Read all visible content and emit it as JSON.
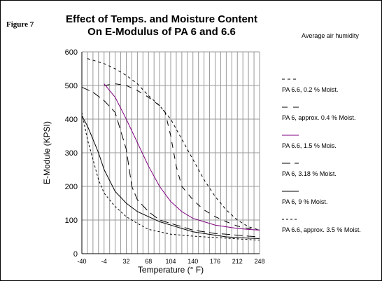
{
  "figure_label": "Figure 7",
  "chart_data": {
    "type": "line",
    "title_lines": [
      "Effect of Temps. and Moisture Content",
      "On E-Modulus of PA 6 and 6.6"
    ],
    "legend_title": "Average air humidity",
    "xlabel": "Temperature (° F)",
    "ylabel": "E-Module (KPSI)",
    "xlim": [
      -40,
      248
    ],
    "ylim": [
      0,
      600
    ],
    "x_ticks": [
      -40,
      -4,
      32,
      68,
      104,
      140,
      176,
      212,
      248
    ],
    "y_ticks": [
      0,
      100,
      200,
      300,
      400,
      500,
      600
    ],
    "grid": true,
    "legend_position": "right",
    "series": [
      {
        "name": "PA 6.6, 0.2 % Moist.",
        "color": "#000000",
        "dash": "4,4",
        "points": [
          [
            -31,
            580
          ],
          [
            -4,
            565
          ],
          [
            14,
            550
          ],
          [
            32,
            530
          ],
          [
            50,
            505
          ],
          [
            68,
            470
          ],
          [
            86,
            440
          ],
          [
            104,
            400
          ],
          [
            122,
            340
          ],
          [
            140,
            280
          ],
          [
            158,
            220
          ],
          [
            176,
            170
          ],
          [
            194,
            130
          ],
          [
            212,
            100
          ],
          [
            230,
            80
          ],
          [
            248,
            70
          ]
        ]
      },
      {
        "name": "PA 6, approx. 0.4 % Moist.",
        "color": "#000000",
        "dash": "8,8",
        "points": [
          [
            -4,
            500
          ],
          [
            14,
            505
          ],
          [
            32,
            500
          ],
          [
            50,
            485
          ],
          [
            68,
            465
          ],
          [
            86,
            440
          ],
          [
            95,
            420
          ],
          [
            104,
            350
          ],
          [
            113,
            260
          ],
          [
            122,
            200
          ],
          [
            140,
            160
          ],
          [
            158,
            130
          ],
          [
            176,
            110
          ],
          [
            194,
            95
          ],
          [
            212,
            82
          ],
          [
            230,
            75
          ],
          [
            248,
            70
          ]
        ]
      },
      {
        "name": "PA 6.6, 1.5 % Mois.",
        "color": "#800080",
        "dash": "",
        "points": [
          [
            -4,
            505
          ],
          [
            14,
            465
          ],
          [
            32,
            400
          ],
          [
            50,
            330
          ],
          [
            68,
            260
          ],
          [
            86,
            200
          ],
          [
            104,
            155
          ],
          [
            122,
            125
          ],
          [
            140,
            105
          ],
          [
            158,
            95
          ],
          [
            176,
            85
          ],
          [
            194,
            80
          ],
          [
            212,
            75
          ],
          [
            230,
            72
          ],
          [
            248,
            70
          ]
        ]
      },
      {
        "name": "PA 6, 3.18 % Moist.",
        "color": "#000000",
        "dash": "12,6",
        "points": [
          [
            -40,
            495
          ],
          [
            -22,
            480
          ],
          [
            -4,
            455
          ],
          [
            14,
            420
          ],
          [
            32,
            310
          ],
          [
            41,
            200
          ],
          [
            50,
            160
          ],
          [
            68,
            125
          ],
          [
            86,
            100
          ],
          [
            104,
            90
          ],
          [
            122,
            80
          ],
          [
            140,
            70
          ],
          [
            158,
            65
          ],
          [
            176,
            60
          ],
          [
            194,
            58
          ],
          [
            212,
            55
          ],
          [
            230,
            52
          ],
          [
            248,
            50
          ]
        ]
      },
      {
        "name": "PA 6, 9 % Moist.",
        "color": "#000000",
        "dash": "",
        "points": [
          [
            -40,
            410
          ],
          [
            -31,
            380
          ],
          [
            -22,
            340
          ],
          [
            -13,
            300
          ],
          [
            -4,
            250
          ],
          [
            14,
            185
          ],
          [
            32,
            150
          ],
          [
            50,
            125
          ],
          [
            68,
            110
          ],
          [
            86,
            95
          ],
          [
            104,
            85
          ],
          [
            122,
            75
          ],
          [
            140,
            65
          ],
          [
            158,
            60
          ],
          [
            176,
            55
          ],
          [
            194,
            50
          ],
          [
            212,
            48
          ],
          [
            230,
            46
          ],
          [
            248,
            45
          ]
        ]
      },
      {
        "name": "PA 6.6, approx. 3.5 % Moist.",
        "color": "#000000",
        "dash": "3,3",
        "points": [
          [
            -40,
            470
          ],
          [
            -40,
            420
          ],
          [
            -31,
            340
          ],
          [
            -22,
            280
          ],
          [
            -13,
            220
          ],
          [
            -4,
            180
          ],
          [
            14,
            140
          ],
          [
            32,
            110
          ],
          [
            50,
            90
          ],
          [
            68,
            72
          ],
          [
            86,
            65
          ],
          [
            104,
            58
          ],
          [
            122,
            55
          ],
          [
            140,
            52
          ],
          [
            158,
            50
          ],
          [
            176,
            48
          ],
          [
            194,
            46
          ],
          [
            212,
            44
          ],
          [
            230,
            42
          ],
          [
            248,
            40
          ]
        ]
      }
    ]
  }
}
